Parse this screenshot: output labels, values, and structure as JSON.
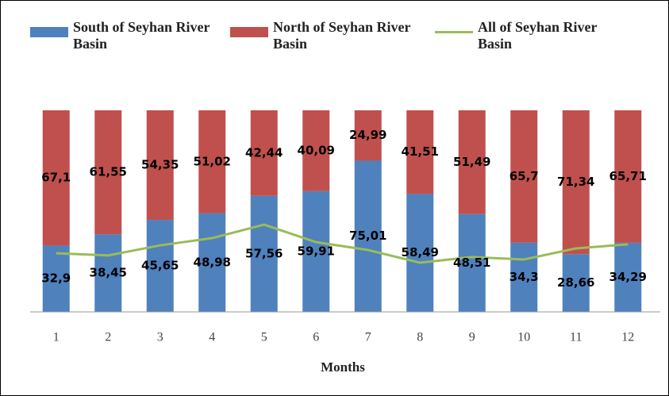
{
  "chart_data": {
    "type": "stacked_bar_line",
    "x_label": "Months",
    "categories": [
      "1",
      "2",
      "3",
      "4",
      "5",
      "6",
      "7",
      "8",
      "9",
      "10",
      "11",
      "12"
    ],
    "ylim": [
      0,
      100
    ],
    "series": [
      {
        "name": "South of Seyhan River Basin",
        "color": "#4f81bd",
        "kind": "bar",
        "values": [
          32.9,
          38.45,
          45.65,
          48.98,
          57.56,
          59.91,
          75.01,
          58.49,
          48.51,
          34.3,
          28.66,
          34.29
        ],
        "value_labels": [
          "32,9",
          "38,45",
          "45,65",
          "48,98",
          "57,56",
          "59,91",
          "75,01",
          "58,49",
          "48,51",
          "34,3",
          "28,66",
          "34,29"
        ]
      },
      {
        "name": "North of Seyhan River Basin",
        "color": "#c0504d",
        "kind": "bar",
        "values": [
          67.1,
          61.55,
          54.35,
          51.02,
          42.44,
          40.09,
          24.99,
          41.51,
          51.49,
          65.7,
          71.34,
          65.71
        ],
        "value_labels": [
          "67,1",
          "61,55",
          "54,35",
          "51,02",
          "42,44",
          "40,09",
          "24,99",
          "41,51",
          "51,49",
          "65,7",
          "71,34",
          "65,71"
        ]
      },
      {
        "name": "All of Seyhan River Basin",
        "color": "#9bbb59",
        "kind": "line",
        "values": [
          29.1,
          28,
          33,
          36.6,
          43.3,
          34.6,
          30.7,
          24.4,
          27.2,
          26,
          31.5,
          33.5
        ]
      }
    ]
  }
}
